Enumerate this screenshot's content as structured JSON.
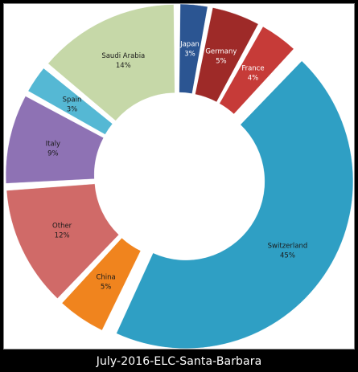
{
  "caption": "July-2016-ELC-Santa-Barbara",
  "chart_data": {
    "type": "pie",
    "variant": "donut-exploded",
    "title": "",
    "legend": "none",
    "start_angle_deg": 0,
    "direction": "clockwise",
    "slices": [
      {
        "name": "Japan",
        "value": 3,
        "label": "3%",
        "color": "#2b5592",
        "label_color": "#ffffff"
      },
      {
        "name": "Germany",
        "value": 5,
        "label": "5%",
        "color": "#9e2a28",
        "label_color": "#ffffff"
      },
      {
        "name": "France",
        "value": 4,
        "label": "4%",
        "color": "#c63b38",
        "label_color": "#ffffff"
      },
      {
        "name": "Switzerland",
        "value": 45,
        "label": "45%",
        "color": "#2f9fc4",
        "label_color": "#1a1a1a"
      },
      {
        "name": "China",
        "value": 5,
        "label": "5%",
        "color": "#f0841e",
        "label_color": "#1a1a1a"
      },
      {
        "name": "Other",
        "value": 12,
        "label": "12%",
        "color": "#d06a68",
        "label_color": "#1a1a1a"
      },
      {
        "name": "Italy",
        "value": 9,
        "label": "9%",
        "color": "#8e72b4",
        "label_color": "#1a1a1a"
      },
      {
        "name": "Spain",
        "value": 3,
        "label": "3%",
        "color": "#55b8d4",
        "label_color": "#1a1a1a"
      },
      {
        "name": "Saudi Arabia",
        "value": 14,
        "label": "14%",
        "color": "#c6d8a8",
        "label_color": "#1a1a1a"
      }
    ]
  }
}
